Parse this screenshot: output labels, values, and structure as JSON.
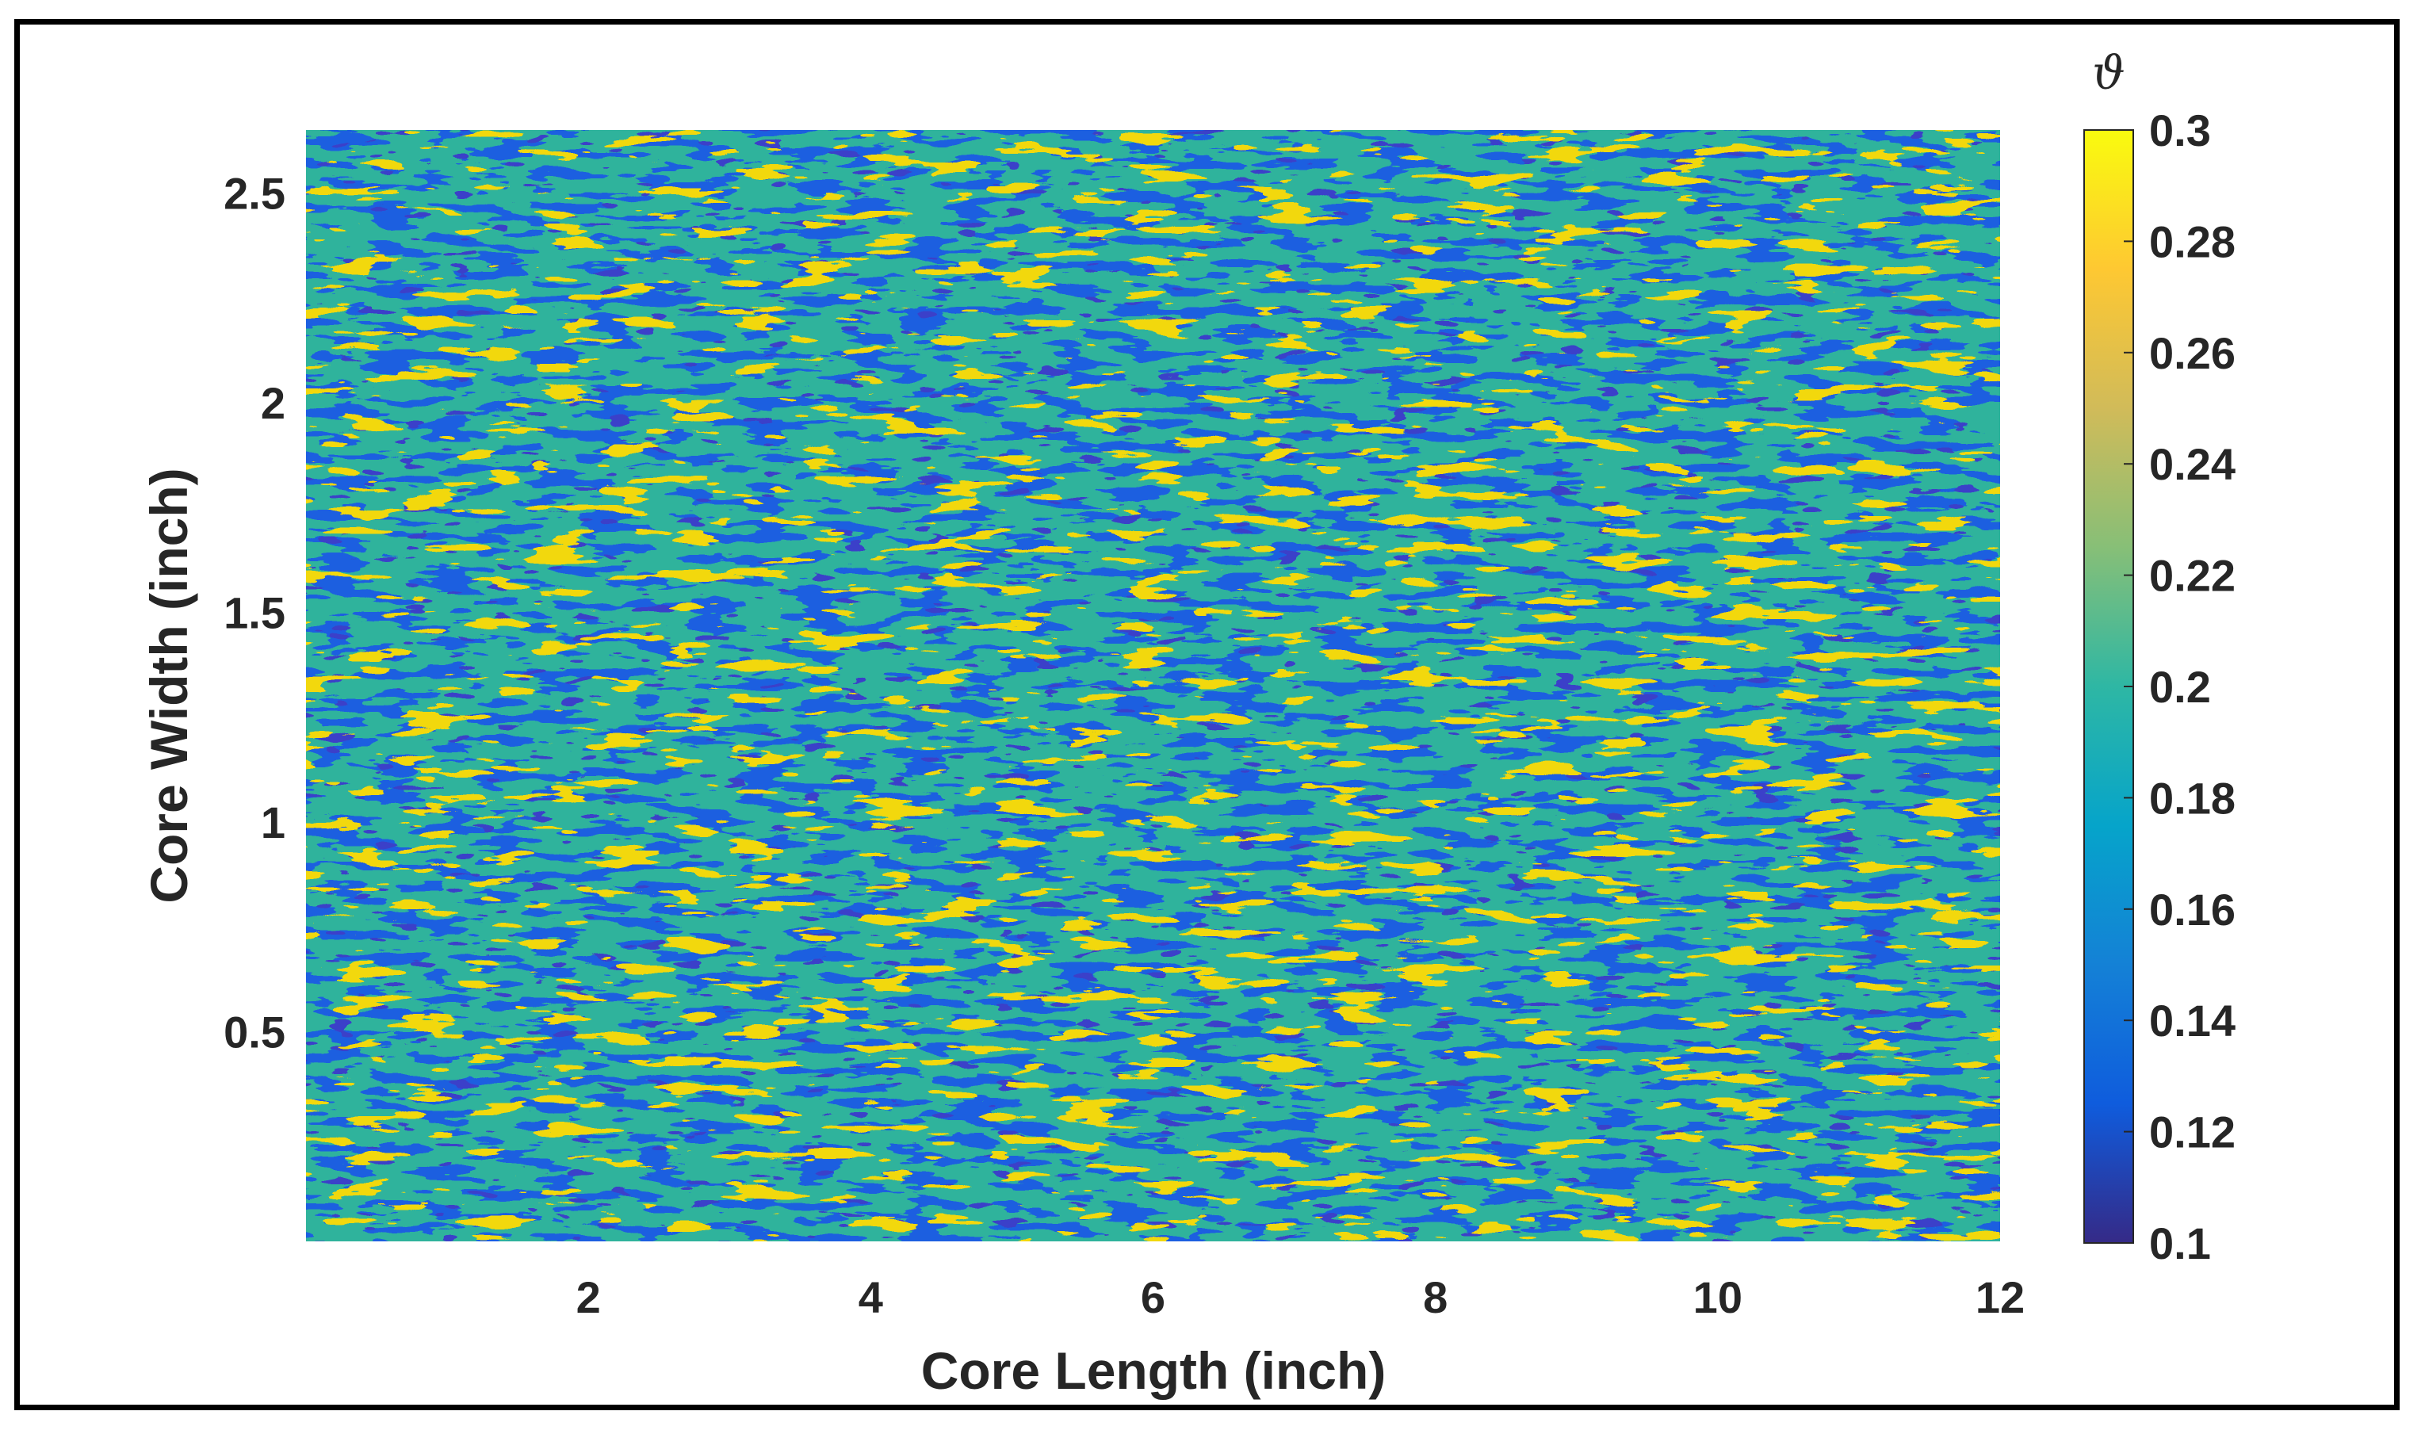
{
  "chart_data": {
    "type": "heatmap",
    "title": "",
    "xlabel": "Core Length (inch)",
    "ylabel": "Core Width (inch)",
    "xlim": [
      0,
      12
    ],
    "ylim": [
      0,
      2.65
    ],
    "x_ticks": [
      "2",
      "4",
      "6",
      "8",
      "10",
      "12"
    ],
    "y_ticks": [
      "0.5",
      "1",
      "1.5",
      "2",
      "2.5"
    ],
    "colorbar": {
      "label": "ϑ",
      "range": [
        0.1,
        0.3
      ],
      "ticks": [
        "0.1",
        "0.12",
        "0.14",
        "0.16",
        "0.18",
        "0.2",
        "0.22",
        "0.24",
        "0.26",
        "0.28",
        "0.3"
      ],
      "colormap": "parula",
      "colors": [
        "#352a87",
        "#0f5cdd",
        "#1481d6",
        "#06a4ca",
        "#2eb7a4",
        "#87bf77",
        "#d1bb59",
        "#fec832",
        "#f9fb0e"
      ]
    },
    "grid": false,
    "legend": "none"
  }
}
